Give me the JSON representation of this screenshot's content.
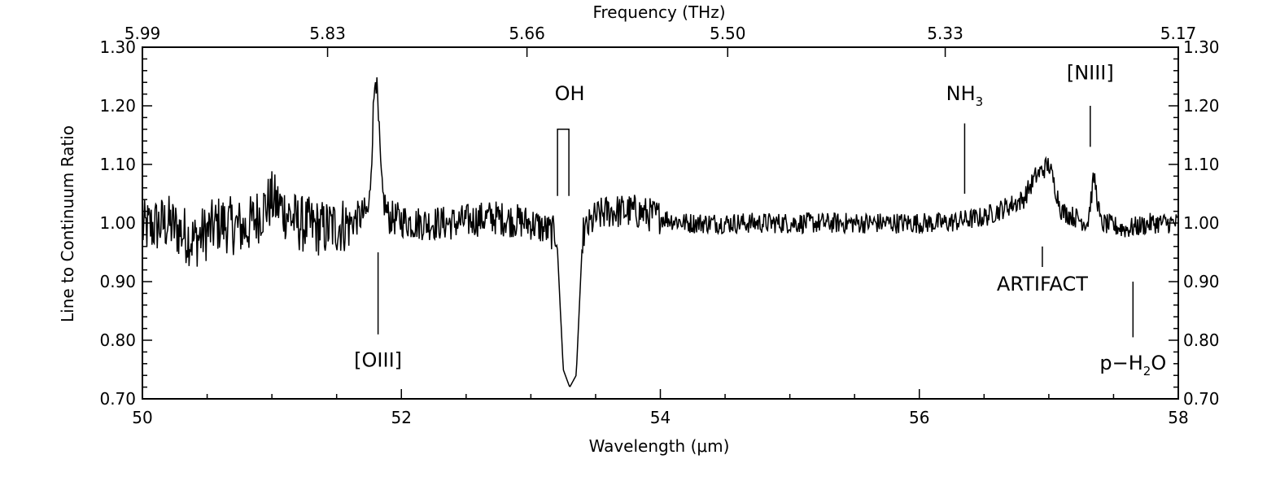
{
  "chart_data": {
    "type": "line",
    "title": "",
    "xlabel": "Wavelength (μm)",
    "ylabel": "Line to Continuum Ratio",
    "top_axis_label": "Frequency (THz)",
    "xlim": [
      50,
      58
    ],
    "ylim": [
      0.7,
      1.3
    ],
    "x_ticks": [
      50,
      52,
      54,
      56,
      58
    ],
    "x_tick_labels": [
      "50",
      "52",
      "54",
      "56",
      "58"
    ],
    "y_ticks": [
      0.7,
      0.8,
      0.9,
      1.0,
      1.1,
      1.2,
      1.3
    ],
    "y_tick_labels": [
      "0.70",
      "0.80",
      "0.90",
      "1.00",
      "1.10",
      "1.20",
      "1.30"
    ],
    "top_ticks": [
      {
        "wavelength": 50.0,
        "label": "5.99"
      },
      {
        "wavelength": 51.43,
        "label": "5.83"
      },
      {
        "wavelength": 52.97,
        "label": "5.66"
      },
      {
        "wavelength": 54.52,
        "label": "5.50"
      },
      {
        "wavelength": 56.2,
        "label": "5.33"
      },
      {
        "wavelength": 58.0,
        "label": "5.17"
      }
    ],
    "grid": false,
    "line_color": "#000000",
    "series": [
      {
        "x": [
          50.0,
          50.2,
          50.4,
          50.6,
          50.8,
          51.0,
          51.2,
          51.4,
          51.6,
          51.75,
          51.8,
          51.85,
          51.9,
          52.1,
          52.4,
          52.7,
          53.0,
          53.2,
          53.25,
          53.3,
          53.35,
          53.4,
          53.5,
          53.6,
          53.8,
          54.2,
          54.6,
          55.0,
          55.4,
          55.8,
          56.2,
          56.5,
          56.8,
          56.9,
          57.0,
          57.1,
          57.3,
          57.35,
          57.4,
          57.6,
          57.8,
          58.0
        ],
        "y": [
          0.99,
          1.0,
          0.97,
          1.0,
          0.99,
          1.04,
          1.0,
          0.99,
          1.0,
          1.02,
          1.27,
          1.05,
          1.01,
          1.0,
          1.0,
          1.01,
          1.0,
          0.98,
          0.75,
          0.72,
          0.74,
          0.98,
          1.01,
          1.02,
          1.02,
          1.0,
          1.0,
          1.0,
          1.0,
          1.0,
          1.0,
          1.01,
          1.04,
          1.08,
          1.1,
          1.02,
          1.0,
          1.08,
          1.0,
          0.99,
          1.0,
          1.0
        ]
      }
    ],
    "annotations": [
      {
        "text": "[OIII]",
        "wavelength": 51.82,
        "line_y": [
          0.81,
          0.95
        ],
        "text_y": 0.755,
        "sub": ""
      },
      {
        "text": "OH",
        "wavelength": 53.3,
        "line_y": [
          1.16,
          1.16
        ],
        "text_y": 1.21,
        "sub": ""
      },
      {
        "text": "NH",
        "sub": "3",
        "wavelength": 56.35,
        "line_y": [
          1.05,
          1.17
        ],
        "text_y": 1.21,
        "tail": ""
      },
      {
        "text": "[NIII]",
        "wavelength": 57.32,
        "line_y": [
          1.13,
          1.2
        ],
        "text_y": 1.245,
        "sub": ""
      },
      {
        "text": "ARTIFACT",
        "wavelength": 56.95,
        "line_y": [
          0.925,
          0.96
        ],
        "text_y": 0.885,
        "sub": ""
      },
      {
        "text": "p−H",
        "sub": "2",
        "tail": "O",
        "wavelength": 57.65,
        "line_y": [
          0.805,
          0.9
        ],
        "text_y": 0.75
      }
    ]
  }
}
